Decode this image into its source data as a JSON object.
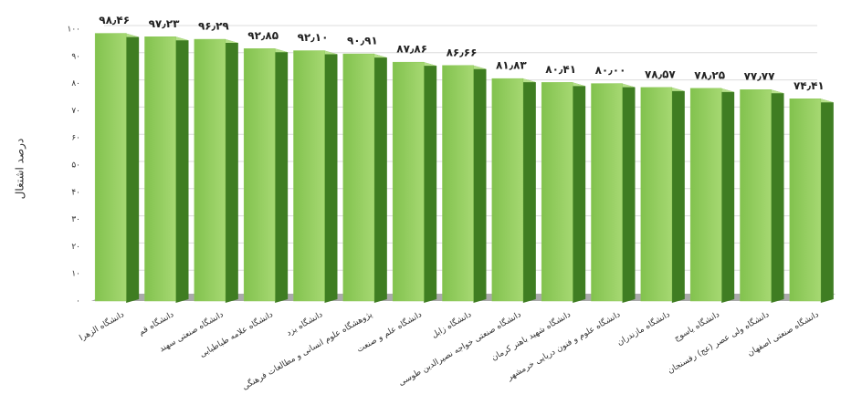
{
  "chart_data": {
    "type": "bar3d",
    "y_label": "درصد اشتغال",
    "categories": [
      "دانشگاه الزهرا",
      "دانشگاه قم",
      "دانشگاه صنعتی سهند",
      "دانشگاه علامه طباطبایی",
      "دانشگاه یزد",
      "پژوهشگاه علوم انسانی و مطالعات فرهنگی",
      "دانشگاه علم و صنعت",
      "دانشگاه زابل",
      "دانشگاه صنعتی خواجه نصیرالدین طوسی",
      "دانشگاه شهید باهنر کرمان",
      "دانشگاه علوم و فنون دریایی خرمشهر",
      "دانشگاه مازندران",
      "دانشگاه یاسوج",
      "دانشگاه ولی عصر (عج) رفسنجان",
      "دانشگاه صنعتی اصفهان"
    ],
    "values": [
      98.46,
      97.23,
      96.29,
      92.85,
      92.1,
      90.91,
      87.86,
      86.66,
      81.83,
      80.41,
      80.0,
      78.57,
      78.25,
      77.77,
      74.41
    ],
    "value_labels": [
      "۹۸٫۴۶",
      "۹۷٫۲۳",
      "۹۶٫۲۹",
      "۹۲٫۸۵",
      "۹۲٫۱۰",
      "۹۰٫۹۱",
      "۸۷٫۸۶",
      "۸۶٫۶۶",
      "۸۱٫۸۳",
      "۸۰٫۴۱",
      "۸۰٫۰۰",
      "۷۸٫۵۷",
      "۷۸٫۲۵",
      "۷۷٫۷۷",
      "۷۴٫۴۱"
    ],
    "color": "#8cc858",
    "side_color": "#3f7d22",
    "ylim": [
      0,
      100
    ],
    "yticks": [
      {
        "value": 0,
        "label": "۰"
      },
      {
        "value": 10,
        "label": "۱۰"
      },
      {
        "value": 20,
        "label": "۲۰"
      },
      {
        "value": 30,
        "label": "۳۰"
      },
      {
        "value": 40,
        "label": "۴۰"
      },
      {
        "value": 50,
        "label": "۵۰"
      },
      {
        "value": 60,
        "label": "۶۰"
      },
      {
        "value": 70,
        "label": "۷۰"
      },
      {
        "value": 80,
        "label": "۸۰"
      },
      {
        "value": 90,
        "label": "۹۰"
      },
      {
        "value": 100,
        "label": "۱۰۰"
      }
    ],
    "grid": true
  }
}
